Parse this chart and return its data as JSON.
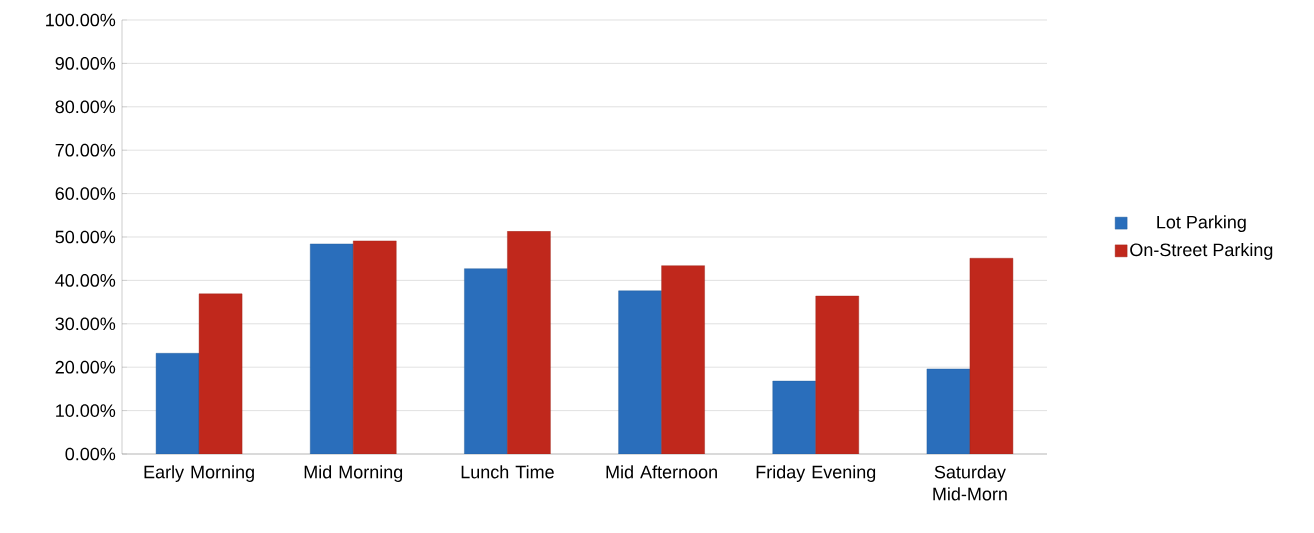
{
  "chart_data": {
    "type": "bar",
    "categories": [
      "Early Morning",
      "Mid Morning",
      "Lunch Time",
      "Mid Afternoon",
      "Friday Evening",
      "Saturday Mid-Morn"
    ],
    "series": [
      {
        "name": "Lot Parking",
        "color": "#2a6ebb",
        "values": [
          23.2,
          48.4,
          42.7,
          37.6,
          16.8,
          19.6
        ]
      },
      {
        "name": "On-Street Parking",
        "color": "#c0281c",
        "values": [
          36.9,
          49.1,
          51.3,
          43.4,
          36.4,
          45.1
        ]
      }
    ],
    "ylim": [
      0,
      100
    ],
    "yticks": [
      {
        "value": 0,
        "label": "0.00%"
      },
      {
        "value": 10,
        "label": "10.00%"
      },
      {
        "value": 20,
        "label": "20.00%"
      },
      {
        "value": 30,
        "label": "30.00%"
      },
      {
        "value": 40,
        "label": "40.00%"
      },
      {
        "value": 50,
        "label": "50.00%"
      },
      {
        "value": 60,
        "label": "60.00%"
      },
      {
        "value": 70,
        "label": "70.00%"
      },
      {
        "value": 80,
        "label": "80.00%"
      },
      {
        "value": 90,
        "label": "90.00%"
      },
      {
        "value": 100,
        "label": "100.00%"
      }
    ],
    "grid": "y",
    "legend": "right"
  }
}
